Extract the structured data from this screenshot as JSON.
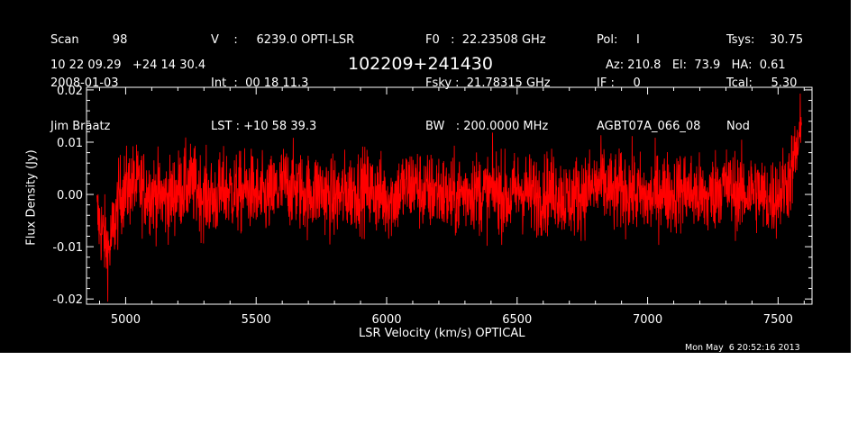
{
  "header": {
    "col1": [
      "Scan         98",
      "2008-01-03",
      "Jim Braatz"
    ],
    "col2": [
      "V    :     6239.0 OPTI-LSR",
      "Int  :  00 18 11.3",
      "LST : +10 58 39.3"
    ],
    "col3": [
      "F0   :  22.23508 GHz",
      "Fsky :  21.78315 GHz",
      "BW   : 200.0000 MHz"
    ],
    "col4": [
      "Pol:     I",
      "IF :     0",
      "AGBT07A_066_08"
    ],
    "col5": [
      "Tsys:    30.75",
      "Tcal:     5.30",
      "Nod"
    ],
    "coords": "10 22 09.29   +24 14 30.4",
    "source": "102209+241430",
    "azelha": "Az: 210.8   El:  73.9   HA:  0.61",
    "timestamp": "Mon May  6 20:52:16 2013"
  },
  "colors": {
    "background": "#000000",
    "axes": "#ffffff",
    "series": "#ff0000"
  },
  "chart_data": {
    "type": "line",
    "xlabel": "LSR Velocity (km/s) OPTICAL",
    "ylabel": "Flux Density (Jy)",
    "xlim": [
      4850,
      7630
    ],
    "ylim": [
      -0.021,
      0.0205
    ],
    "xticks": [
      5000,
      5500,
      6000,
      6500,
      7000,
      7500
    ],
    "xtick_labels": [
      "5000",
      "5500",
      "6000",
      "6500",
      "7000",
      "7500"
    ],
    "yticks": [
      -0.02,
      -0.01,
      0.0,
      0.01,
      0.02
    ],
    "ytick_labels": [
      "-0.02",
      "-0.01",
      "0.00",
      "0.01",
      "0.02"
    ],
    "series": [
      {
        "x_start": 4890,
        "x_end": 7590,
        "y_samples": [
          -0.004,
          -0.011,
          0.0,
          0.002,
          0.001,
          0.0,
          -0.001,
          0.001,
          0.002,
          0.0,
          -0.001,
          0.001,
          0.0,
          0.001,
          -0.001,
          0.0,
          0.002,
          0.001,
          0.0,
          0.001,
          -0.001,
          0.0,
          0.001,
          0.001,
          0.0,
          -0.001,
          0.001,
          0.002,
          0.0,
          0.001,
          -0.001,
          0.0,
          0.001,
          0.0,
          0.001,
          -0.001,
          0.001,
          0.0,
          0.0,
          0.001,
          -0.001,
          0.0,
          0.001,
          0.002,
          0.0,
          0.001,
          0.0,
          -0.001,
          0.001,
          0.0,
          0.001,
          0.0,
          -0.001,
          0.002,
          0.001,
          0.0,
          0.001,
          -0.001,
          0.0,
          0.003,
          0.012
        ],
        "noise_rms": 0.0038
      }
    ]
  }
}
